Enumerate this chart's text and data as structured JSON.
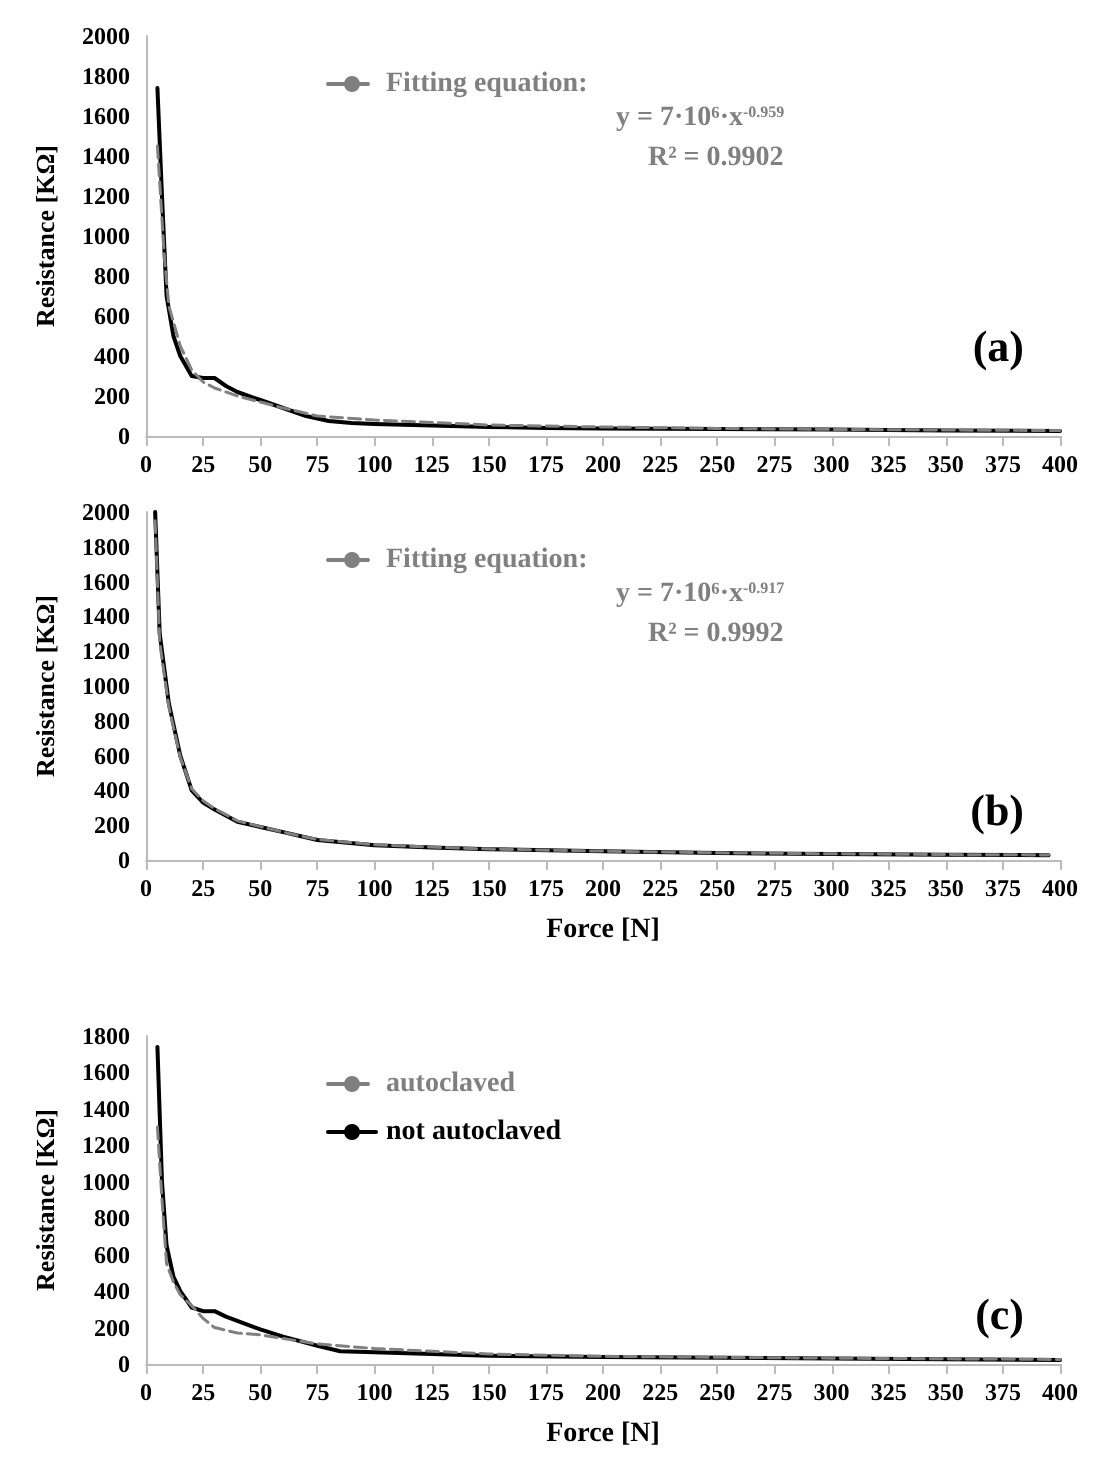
{
  "chart_data": [
    {
      "type": "line",
      "ylabel": "Resistance [KΩ]",
      "xlim": [
        0,
        400
      ],
      "xticks": [
        0,
        25,
        50,
        75,
        100,
        125,
        150,
        175,
        200,
        225,
        250,
        275,
        300,
        325,
        350,
        375,
        400
      ],
      "ylim": [
        0,
        2000
      ],
      "yticks": [
        0,
        200,
        400,
        600,
        800,
        1000,
        1200,
        1400,
        1600,
        1800,
        2000
      ],
      "grid": false,
      "legend": "top",
      "marker": "none",
      "annotations": [
        "y = 7·10⁶·x$^{-0.959}$",
        "R² = 0.9902",
        "(a)"
      ],
      "series": [
        {
          "color": "#000000",
          "line_style": "solid",
          "x": [
            5,
            7,
            9,
            12,
            15,
            20,
            25,
            30,
            35,
            40,
            50,
            60,
            70,
            80,
            90,
            100,
            125,
            150,
            175,
            200,
            250,
            300,
            350,
            400
          ],
          "values": [
            1740,
            1200,
            700,
            500,
            400,
            300,
            290,
            290,
            250,
            220,
            180,
            140,
            100,
            75,
            65,
            60,
            52,
            45,
            40,
            38,
            35,
            32,
            28,
            25
          ]
        },
        {
          "name": "Fitting equation:",
          "color": "#808080",
          "line_style": "dashed",
          "x": [
            5,
            8,
            10,
            15,
            20,
            25,
            30,
            40,
            50,
            60,
            75,
            100,
            150,
            200,
            250,
            300,
            350,
            400
          ],
          "values": [
            1450,
            900,
            650,
            450,
            330,
            270,
            240,
            200,
            170,
            140,
            100,
            80,
            55,
            45,
            38,
            33,
            30,
            27
          ]
        }
      ]
    },
    {
      "type": "line",
      "xlabel": "Force [N]",
      "ylabel": "Resistance [KΩ]",
      "xlim": [
        0,
        400
      ],
      "xticks": [
        0,
        25,
        50,
        75,
        100,
        125,
        150,
        175,
        200,
        225,
        250,
        275,
        300,
        325,
        350,
        375,
        400
      ],
      "ylim": [
        0,
        2000
      ],
      "yticks": [
        0,
        200,
        400,
        600,
        800,
        1000,
        1200,
        1400,
        1600,
        1800,
        2000
      ],
      "grid": false,
      "legend": "top",
      "marker": "none",
      "annotations": [
        "y = 7·10⁶·x$^{-0.917}$",
        "R² = 0.9992",
        "(b)"
      ],
      "series": [
        {
          "color": "#000000",
          "line_style": "solid",
          "x": [
            4,
            6,
            10,
            15,
            20,
            25,
            30,
            40,
            50,
            60,
            75,
            100,
            125,
            150,
            200,
            250,
            300,
            350,
            395
          ],
          "values": [
            2000,
            1300,
            900,
            600,
            400,
            330,
            290,
            220,
            190,
            160,
            115,
            85,
            72,
            62,
            50,
            40,
            35,
            30,
            28
          ]
        },
        {
          "name": "Fitting equation:",
          "color": "#808080",
          "line_style": "dashed",
          "x": [
            4,
            6,
            10,
            15,
            20,
            25,
            30,
            40,
            50,
            60,
            75,
            100,
            125,
            150,
            200,
            250,
            300,
            350,
            395
          ],
          "values": [
            1950,
            1250,
            880,
            590,
            410,
            340,
            295,
            225,
            192,
            160,
            118,
            88,
            74,
            63,
            51,
            41,
            36,
            31,
            29
          ]
        }
      ]
    },
    {
      "type": "line",
      "xlabel": "Force [N]",
      "ylabel": "Resistance [KΩ]",
      "xlim": [
        0,
        400
      ],
      "xticks": [
        0,
        25,
        50,
        75,
        100,
        125,
        150,
        175,
        200,
        225,
        250,
        275,
        300,
        325,
        350,
        375,
        400
      ],
      "ylim": [
        0,
        1800
      ],
      "yticks": [
        0,
        200,
        400,
        600,
        800,
        1000,
        1200,
        1400,
        1600,
        1800
      ],
      "grid": false,
      "legend": "top",
      "marker": "none",
      "annotations": [
        "(c)"
      ],
      "series": [
        {
          "name": "autoclaved",
          "color": "#808080",
          "line_style": "dashed",
          "x": [
            5,
            7,
            9,
            12,
            15,
            20,
            25,
            30,
            40,
            50,
            60,
            75,
            100,
            150,
            200,
            300,
            400
          ],
          "values": [
            1300,
            900,
            550,
            450,
            380,
            320,
            250,
            200,
            170,
            160,
            140,
            110,
            85,
            55,
            42,
            32,
            25
          ]
        },
        {
          "name": "not autoclaved",
          "color": "#000000",
          "line_style": "solid",
          "x": [
            5,
            7,
            9,
            12,
            15,
            20,
            25,
            30,
            35,
            50,
            60,
            75,
            85,
            100,
            150,
            200,
            300,
            400
          ],
          "values": [
            1740,
            1000,
            650,
            480,
            400,
            310,
            290,
            290,
            260,
            190,
            150,
            100,
            70,
            65,
            45,
            38,
            30,
            22
          ]
        }
      ]
    }
  ]
}
